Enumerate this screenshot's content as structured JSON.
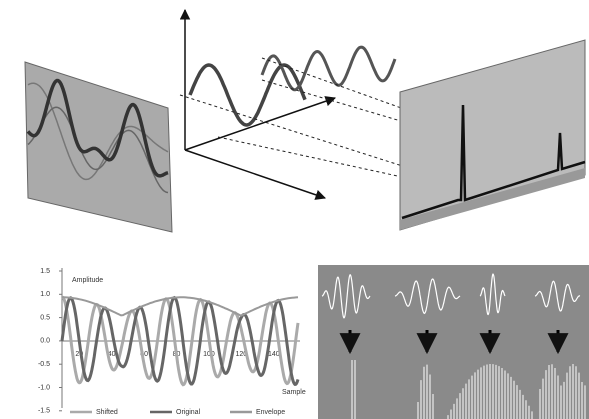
{
  "envelope_chart": {
    "y_label": "Amplitude",
    "x_label": "Sample",
    "yticks": [
      "1.5",
      "1.0",
      "0.5",
      "0.0",
      "-0.5",
      "-1.0",
      "-1.5"
    ],
    "xticks": [
      "20",
      "40",
      "60",
      "80",
      "100",
      "120",
      "140"
    ],
    "legend": [
      "Shifted",
      "Original",
      "Envelope"
    ]
  }
}
